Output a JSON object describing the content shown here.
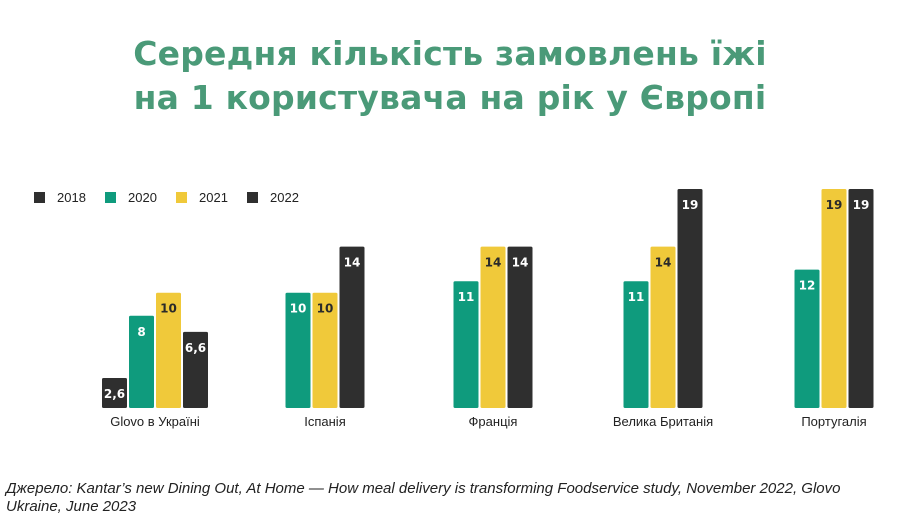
{
  "title_line1": "Середня кількість замовлень їжі",
  "title_line2": "на 1 користувача на рік у Європі",
  "source_text": "Джерело: Kantar’s new Dining Out, At Home — How meal delivery is transforming Foodservice study, November 2022, Glovo Ukraine, June 2023",
  "chart_data": {
    "type": "bar",
    "title": "Середня кількість замовлень їжі на 1 користувача на рік у Європі",
    "categories": [
      "Glovo в Україні",
      "Іспанія",
      "Франція",
      "Велика Британія",
      "Португалія"
    ],
    "series": [
      {
        "name": "2018",
        "color": "#2f2f2f",
        "values": [
          2.6,
          null,
          null,
          null,
          null
        ],
        "labels": [
          "2,6",
          "",
          "",
          "",
          ""
        ]
      },
      {
        "name": "2020",
        "color": "#0f9b7d",
        "values": [
          8,
          10,
          11,
          11,
          12
        ],
        "labels": [
          "8",
          "10",
          "11",
          "11",
          "12"
        ]
      },
      {
        "name": "2021",
        "color": "#f0c93a",
        "values": [
          10,
          10,
          14,
          14,
          19
        ],
        "labels": [
          "10",
          "10",
          "14",
          "14",
          "19"
        ]
      },
      {
        "name": "2022",
        "color": "#2f2f2f",
        "values": [
          6.6,
          14,
          14,
          19,
          19
        ],
        "labels": [
          "6,6",
          "14",
          "14",
          "19",
          "19"
        ]
      }
    ],
    "ylim": [
      0,
      19
    ],
    "grid": false,
    "legend_position": "top-left",
    "xlabel": "",
    "ylabel": ""
  }
}
